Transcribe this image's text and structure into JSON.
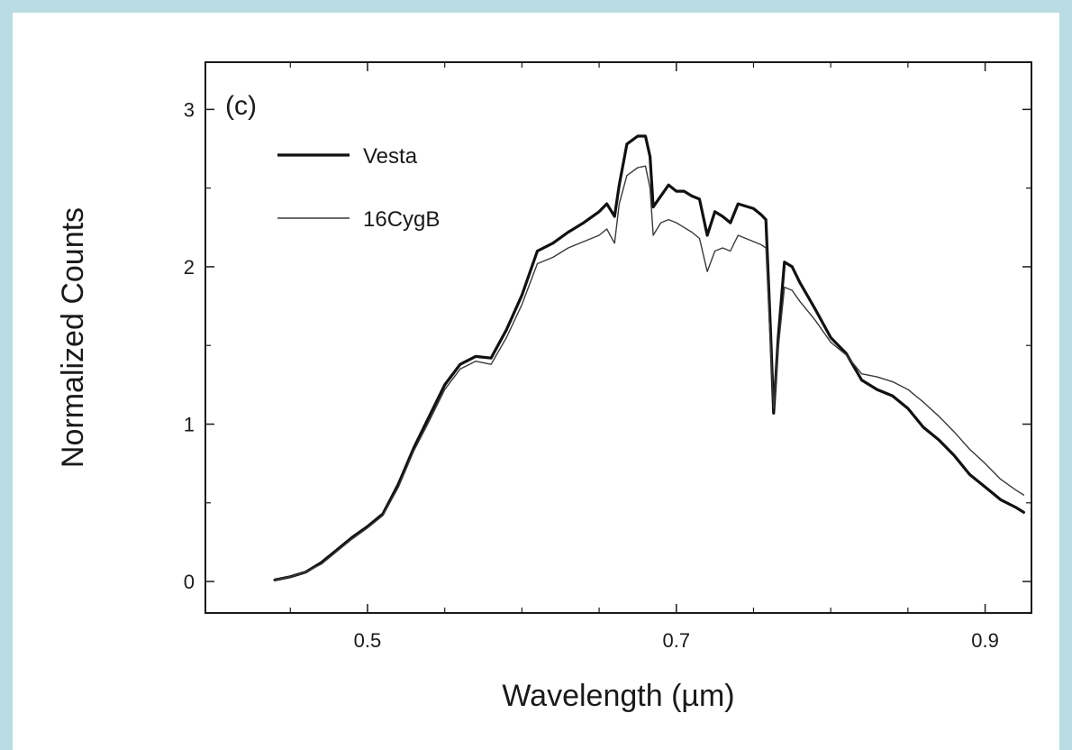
{
  "chart_data": {
    "type": "line",
    "panel_label": "(c)",
    "xlabel": "Wavelength (µm)",
    "ylabel": "Normalized Counts",
    "xlim": [
      0.395,
      0.93
    ],
    "ylim": [
      -0.2,
      3.3
    ],
    "xticks": [
      0.5,
      0.7,
      0.9
    ],
    "yticks": [
      0,
      1,
      2,
      3
    ],
    "xminor": [
      0.45,
      0.55,
      0.6,
      0.65,
      0.75,
      0.8,
      0.85
    ],
    "grid": false,
    "legend_position": "top-left",
    "series": [
      {
        "name": "Vesta",
        "style": "thick",
        "x": [
          0.44,
          0.45,
          0.46,
          0.47,
          0.48,
          0.49,
          0.5,
          0.51,
          0.52,
          0.53,
          0.54,
          0.55,
          0.56,
          0.57,
          0.58,
          0.59,
          0.6,
          0.61,
          0.62,
          0.63,
          0.64,
          0.65,
          0.655,
          0.66,
          0.663,
          0.668,
          0.675,
          0.68,
          0.683,
          0.685,
          0.69,
          0.695,
          0.7,
          0.705,
          0.71,
          0.715,
          0.72,
          0.725,
          0.73,
          0.735,
          0.74,
          0.75,
          0.755,
          0.758,
          0.761,
          0.763,
          0.766,
          0.77,
          0.775,
          0.78,
          0.79,
          0.8,
          0.81,
          0.82,
          0.83,
          0.84,
          0.85,
          0.86,
          0.87,
          0.88,
          0.89,
          0.9,
          0.91,
          0.92,
          0.925
        ],
        "values": [
          0.01,
          0.03,
          0.06,
          0.12,
          0.2,
          0.28,
          0.35,
          0.43,
          0.62,
          0.85,
          1.05,
          1.25,
          1.38,
          1.43,
          1.42,
          1.6,
          1.82,
          2.1,
          2.15,
          2.22,
          2.28,
          2.35,
          2.4,
          2.32,
          2.52,
          2.78,
          2.83,
          2.83,
          2.7,
          2.38,
          2.45,
          2.52,
          2.48,
          2.48,
          2.45,
          2.43,
          2.2,
          2.35,
          2.32,
          2.28,
          2.4,
          2.37,
          2.33,
          2.3,
          1.6,
          1.07,
          1.55,
          2.03,
          2.0,
          1.9,
          1.73,
          1.55,
          1.45,
          1.28,
          1.22,
          1.18,
          1.1,
          0.98,
          0.9,
          0.8,
          0.68,
          0.6,
          0.52,
          0.47,
          0.44
        ]
      },
      {
        "name": "16CygB",
        "style": "thin",
        "x": [
          0.44,
          0.45,
          0.46,
          0.47,
          0.48,
          0.49,
          0.5,
          0.51,
          0.52,
          0.53,
          0.54,
          0.55,
          0.56,
          0.57,
          0.58,
          0.59,
          0.6,
          0.61,
          0.62,
          0.63,
          0.64,
          0.65,
          0.655,
          0.66,
          0.663,
          0.668,
          0.675,
          0.68,
          0.683,
          0.685,
          0.69,
          0.695,
          0.7,
          0.705,
          0.71,
          0.715,
          0.72,
          0.725,
          0.73,
          0.735,
          0.74,
          0.75,
          0.755,
          0.758,
          0.761,
          0.763,
          0.766,
          0.77,
          0.775,
          0.78,
          0.79,
          0.8,
          0.81,
          0.82,
          0.83,
          0.84,
          0.85,
          0.86,
          0.87,
          0.88,
          0.89,
          0.9,
          0.91,
          0.92,
          0.925
        ],
        "values": [
          0.01,
          0.03,
          0.06,
          0.11,
          0.19,
          0.27,
          0.34,
          0.42,
          0.6,
          0.83,
          1.02,
          1.22,
          1.35,
          1.4,
          1.38,
          1.55,
          1.76,
          2.02,
          2.06,
          2.12,
          2.16,
          2.2,
          2.24,
          2.15,
          2.4,
          2.58,
          2.63,
          2.64,
          2.5,
          2.2,
          2.28,
          2.3,
          2.28,
          2.25,
          2.22,
          2.18,
          1.97,
          2.1,
          2.12,
          2.1,
          2.2,
          2.16,
          2.14,
          2.12,
          1.5,
          1.1,
          1.48,
          1.87,
          1.85,
          1.78,
          1.66,
          1.52,
          1.44,
          1.32,
          1.3,
          1.27,
          1.22,
          1.14,
          1.05,
          0.95,
          0.84,
          0.75,
          0.65,
          0.58,
          0.55
        ]
      }
    ]
  }
}
